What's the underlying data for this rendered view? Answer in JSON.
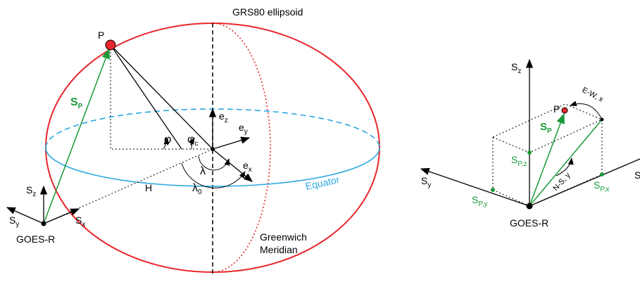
{
  "left": {
    "title": "GRS80 ellipsoid",
    "point": "P",
    "sp": {
      "base": "S",
      "sub": "P"
    },
    "ez": {
      "base": "e",
      "sub": "z"
    },
    "ey": {
      "base": "e",
      "sub": "y"
    },
    "ex": {
      "base": "e",
      "sub": "x"
    },
    "phi": "φ",
    "phic": {
      "base": "φ",
      "sub": "c"
    },
    "lambda": "λ",
    "lambda0": {
      "base": "λ",
      "sub": "0"
    },
    "h": "H",
    "equator": "Equator",
    "sz": {
      "base": "S",
      "sub": "z"
    },
    "sy": {
      "base": "S",
      "sub": "y"
    },
    "sx": {
      "base": "S",
      "sub": "x"
    },
    "station": "GOES-R",
    "meridian": [
      "Greenwich",
      "Meridian"
    ]
  },
  "right": {
    "sz": {
      "base": "S",
      "sub": "z"
    },
    "sy": {
      "base": "S",
      "sub": "y"
    },
    "sx": "S",
    "point": "P",
    "ew": "E-W, x",
    "sp": {
      "base": "S",
      "sub": "P"
    },
    "spz": {
      "base": "S",
      "sub": "P,z"
    },
    "spy": {
      "base": "S",
      "sub": "P,y"
    },
    "spx": {
      "base": "S",
      "sub": "P,x"
    },
    "ns": "N-S, y",
    "station": "GOES-R"
  }
}
